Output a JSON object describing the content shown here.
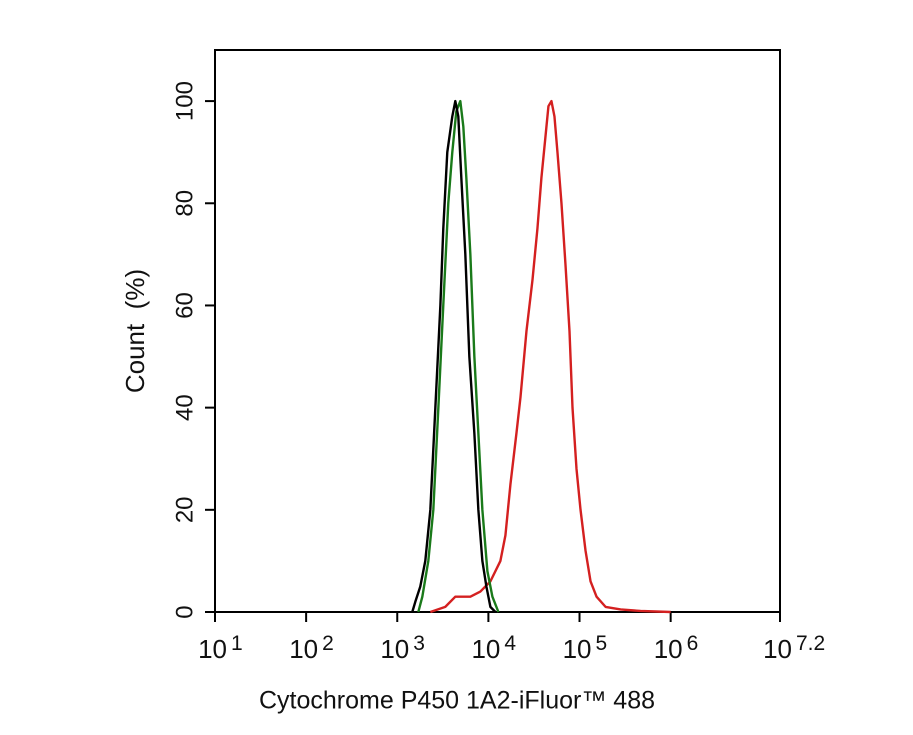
{
  "chart_data": {
    "type": "line",
    "y_label": "Count  (%)",
    "x_label": "Cytochrome P450 1A2-iFluor™ 488",
    "xscale": "log",
    "xlim": [
      10,
      15848932
    ],
    "xticks": [
      {
        "value": 10,
        "label": "10",
        "exponent": "1"
      },
      {
        "value": 100,
        "label": "10",
        "exponent": "2"
      },
      {
        "value": 1000,
        "label": "10",
        "exponent": "3"
      },
      {
        "value": 10000,
        "label": "10",
        "exponent": "4"
      },
      {
        "value": 100000,
        "label": "10",
        "exponent": "5"
      },
      {
        "value": 1000000,
        "label": "10",
        "exponent": "6"
      },
      {
        "value": 15848932,
        "label": "10",
        "exponent": "7.2"
      }
    ],
    "ylim": [
      0,
      110
    ],
    "yticks": [
      0,
      20,
      40,
      60,
      80,
      100
    ],
    "series": [
      {
        "color": "#d42020",
        "x": [
          2307,
          3365,
          4335,
          6339,
          8166,
          10520,
          13550,
          15380,
          17460,
          20320,
          22490,
          26180,
          30480,
          34510,
          38190,
          42270,
          45600,
          49200,
          53090,
          57280,
          63390,
          70150,
          77620,
          83750,
          92680,
          102600,
          116400,
          132100,
          153800,
          193200,
          282500,
          467700,
          1000000
        ],
        "values": [
          0,
          1,
          3,
          3,
          4,
          6,
          10,
          15,
          25,
          35,
          42,
          55,
          65,
          75,
          85,
          93,
          99,
          100,
          97,
          90,
          80,
          68,
          55,
          40,
          28,
          20,
          12,
          6,
          3,
          1,
          0.5,
          0.2,
          0
        ]
      },
      {
        "color": "#1a7a1a",
        "x": [
          1702,
          1884,
          2192,
          2488,
          2825,
          3199,
          3631,
          4018,
          4446,
          4920,
          5309,
          5728,
          6339,
          7015,
          7762,
          8590,
          9750,
          11070,
          12880
        ],
        "values": [
          0,
          3,
          10,
          20,
          40,
          60,
          80,
          90,
          98,
          100,
          95,
          85,
          70,
          50,
          35,
          20,
          8,
          3,
          0
        ]
      },
      {
        "color": "#000000",
        "x": [
          1462,
          1578,
          1790,
          2031,
          2307,
          2618,
          2972,
          3199,
          3540,
          4018,
          4335,
          4677,
          5047,
          5585,
          6180,
          7015,
          7762,
          8590,
          9506,
          10520,
          11940
        ],
        "values": [
          0,
          2,
          5,
          10,
          20,
          40,
          60,
          75,
          90,
          97,
          100,
          97,
          85,
          70,
          50,
          35,
          20,
          10,
          5,
          1,
          0
        ]
      }
    ]
  }
}
